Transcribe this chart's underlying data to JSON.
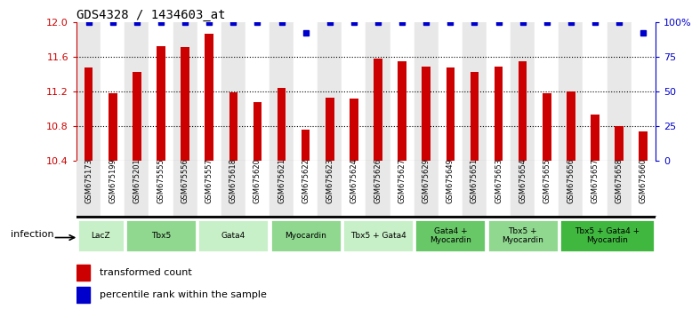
{
  "title": "GDS4328 / 1434603_at",
  "samples": [
    "GSM675173",
    "GSM675199",
    "GSM675201",
    "GSM675555",
    "GSM675556",
    "GSM675557",
    "GSM675618",
    "GSM675620",
    "GSM675621",
    "GSM675622",
    "GSM675623",
    "GSM675624",
    "GSM675626",
    "GSM675627",
    "GSM675629",
    "GSM675649",
    "GSM675651",
    "GSM675653",
    "GSM675654",
    "GSM675655",
    "GSM675656",
    "GSM675657",
    "GSM675658",
    "GSM675660"
  ],
  "bar_values": [
    11.47,
    11.18,
    11.42,
    11.72,
    11.71,
    11.87,
    11.19,
    11.07,
    11.24,
    10.76,
    11.13,
    11.12,
    11.58,
    11.55,
    11.48,
    11.47,
    11.42,
    11.49,
    11.55,
    11.18,
    11.2,
    10.93,
    10.8,
    10.73
  ],
  "percentile_values": [
    100,
    100,
    100,
    100,
    100,
    100,
    100,
    100,
    100,
    92,
    100,
    100,
    100,
    100,
    100,
    100,
    100,
    100,
    100,
    100,
    100,
    100,
    100,
    92
  ],
  "ylim_left": [
    10.4,
    12.0
  ],
  "yticks_left": [
    10.4,
    10.8,
    11.2,
    11.6,
    12.0
  ],
  "ylim_right": [
    0,
    100
  ],
  "yticks_right": [
    0,
    25,
    50,
    75,
    100
  ],
  "yticklabels_right": [
    "0",
    "25",
    "50",
    "75",
    "100%"
  ],
  "bar_color": "#cc0000",
  "dot_color": "#0000cc",
  "groups": [
    {
      "label": "LacZ",
      "start": 0,
      "end": 2,
      "color": "#c8f0c8"
    },
    {
      "label": "Tbx5",
      "start": 2,
      "end": 5,
      "color": "#90d890"
    },
    {
      "label": "Gata4",
      "start": 5,
      "end": 8,
      "color": "#c8f0c8"
    },
    {
      "label": "Myocardin",
      "start": 8,
      "end": 11,
      "color": "#90d890"
    },
    {
      "label": "Tbx5 + Gata4",
      "start": 11,
      "end": 14,
      "color": "#c8f0c8"
    },
    {
      "label": "Gata4 +\nMyocardin",
      "start": 14,
      "end": 17,
      "color": "#68c868"
    },
    {
      "label": "Tbx5 +\nMyocardin",
      "start": 17,
      "end": 20,
      "color": "#90d890"
    },
    {
      "label": "Tbx5 + Gata4 +\nMyocardin",
      "start": 20,
      "end": 24,
      "color": "#40b840"
    }
  ],
  "xlabel_infection": "infection",
  "legend_bar_label": "transformed count",
  "legend_dot_label": "percentile rank within the sample",
  "left_axis_color": "#cc0000",
  "right_axis_color": "#0000cc",
  "bg_colors": [
    "#e8e8e8",
    "#ffffff"
  ]
}
